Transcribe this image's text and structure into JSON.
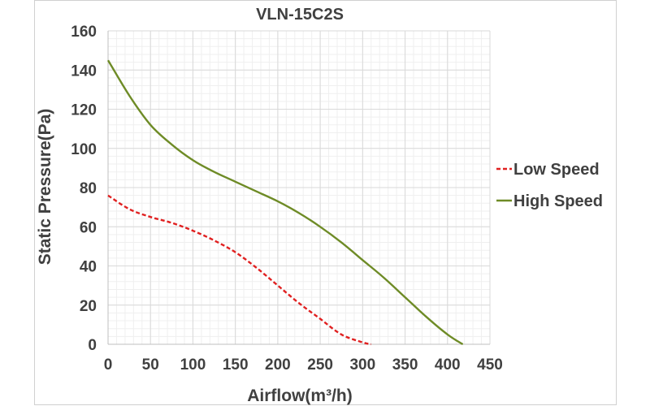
{
  "chart_data": {
    "type": "line",
    "title": "VLN-15C2S",
    "xlabel": "Airflow(m³/h)",
    "ylabel": "Static Pressure(Pa)",
    "xlim": [
      0,
      450
    ],
    "ylim": [
      0,
      160
    ],
    "x_ticks": [
      0,
      50,
      100,
      150,
      200,
      250,
      300,
      350,
      400,
      450
    ],
    "y_ticks": [
      0,
      20,
      40,
      60,
      80,
      100,
      120,
      140,
      160
    ],
    "grid": true,
    "legend_position": "right",
    "series": [
      {
        "name": "Low Speed",
        "color": "#e02020",
        "dash": "dashed",
        "x": [
          0,
          25,
          50,
          75,
          100,
          125,
          150,
          175,
          200,
          225,
          250,
          275,
          300,
          310
        ],
        "y": [
          76,
          69,
          65,
          62,
          58,
          53,
          47,
          39,
          30,
          21,
          13,
          5,
          1,
          0
        ]
      },
      {
        "name": "High Speed",
        "color": "#6e8b26",
        "dash": "solid",
        "x": [
          0,
          25,
          50,
          75,
          100,
          125,
          150,
          175,
          200,
          225,
          250,
          275,
          300,
          325,
          350,
          375,
          400,
          418
        ],
        "y": [
          145,
          127,
          112,
          102,
          94,
          88,
          83,
          78,
          73,
          67,
          60,
          52,
          43,
          34,
          24,
          14,
          5,
          0
        ]
      }
    ]
  }
}
